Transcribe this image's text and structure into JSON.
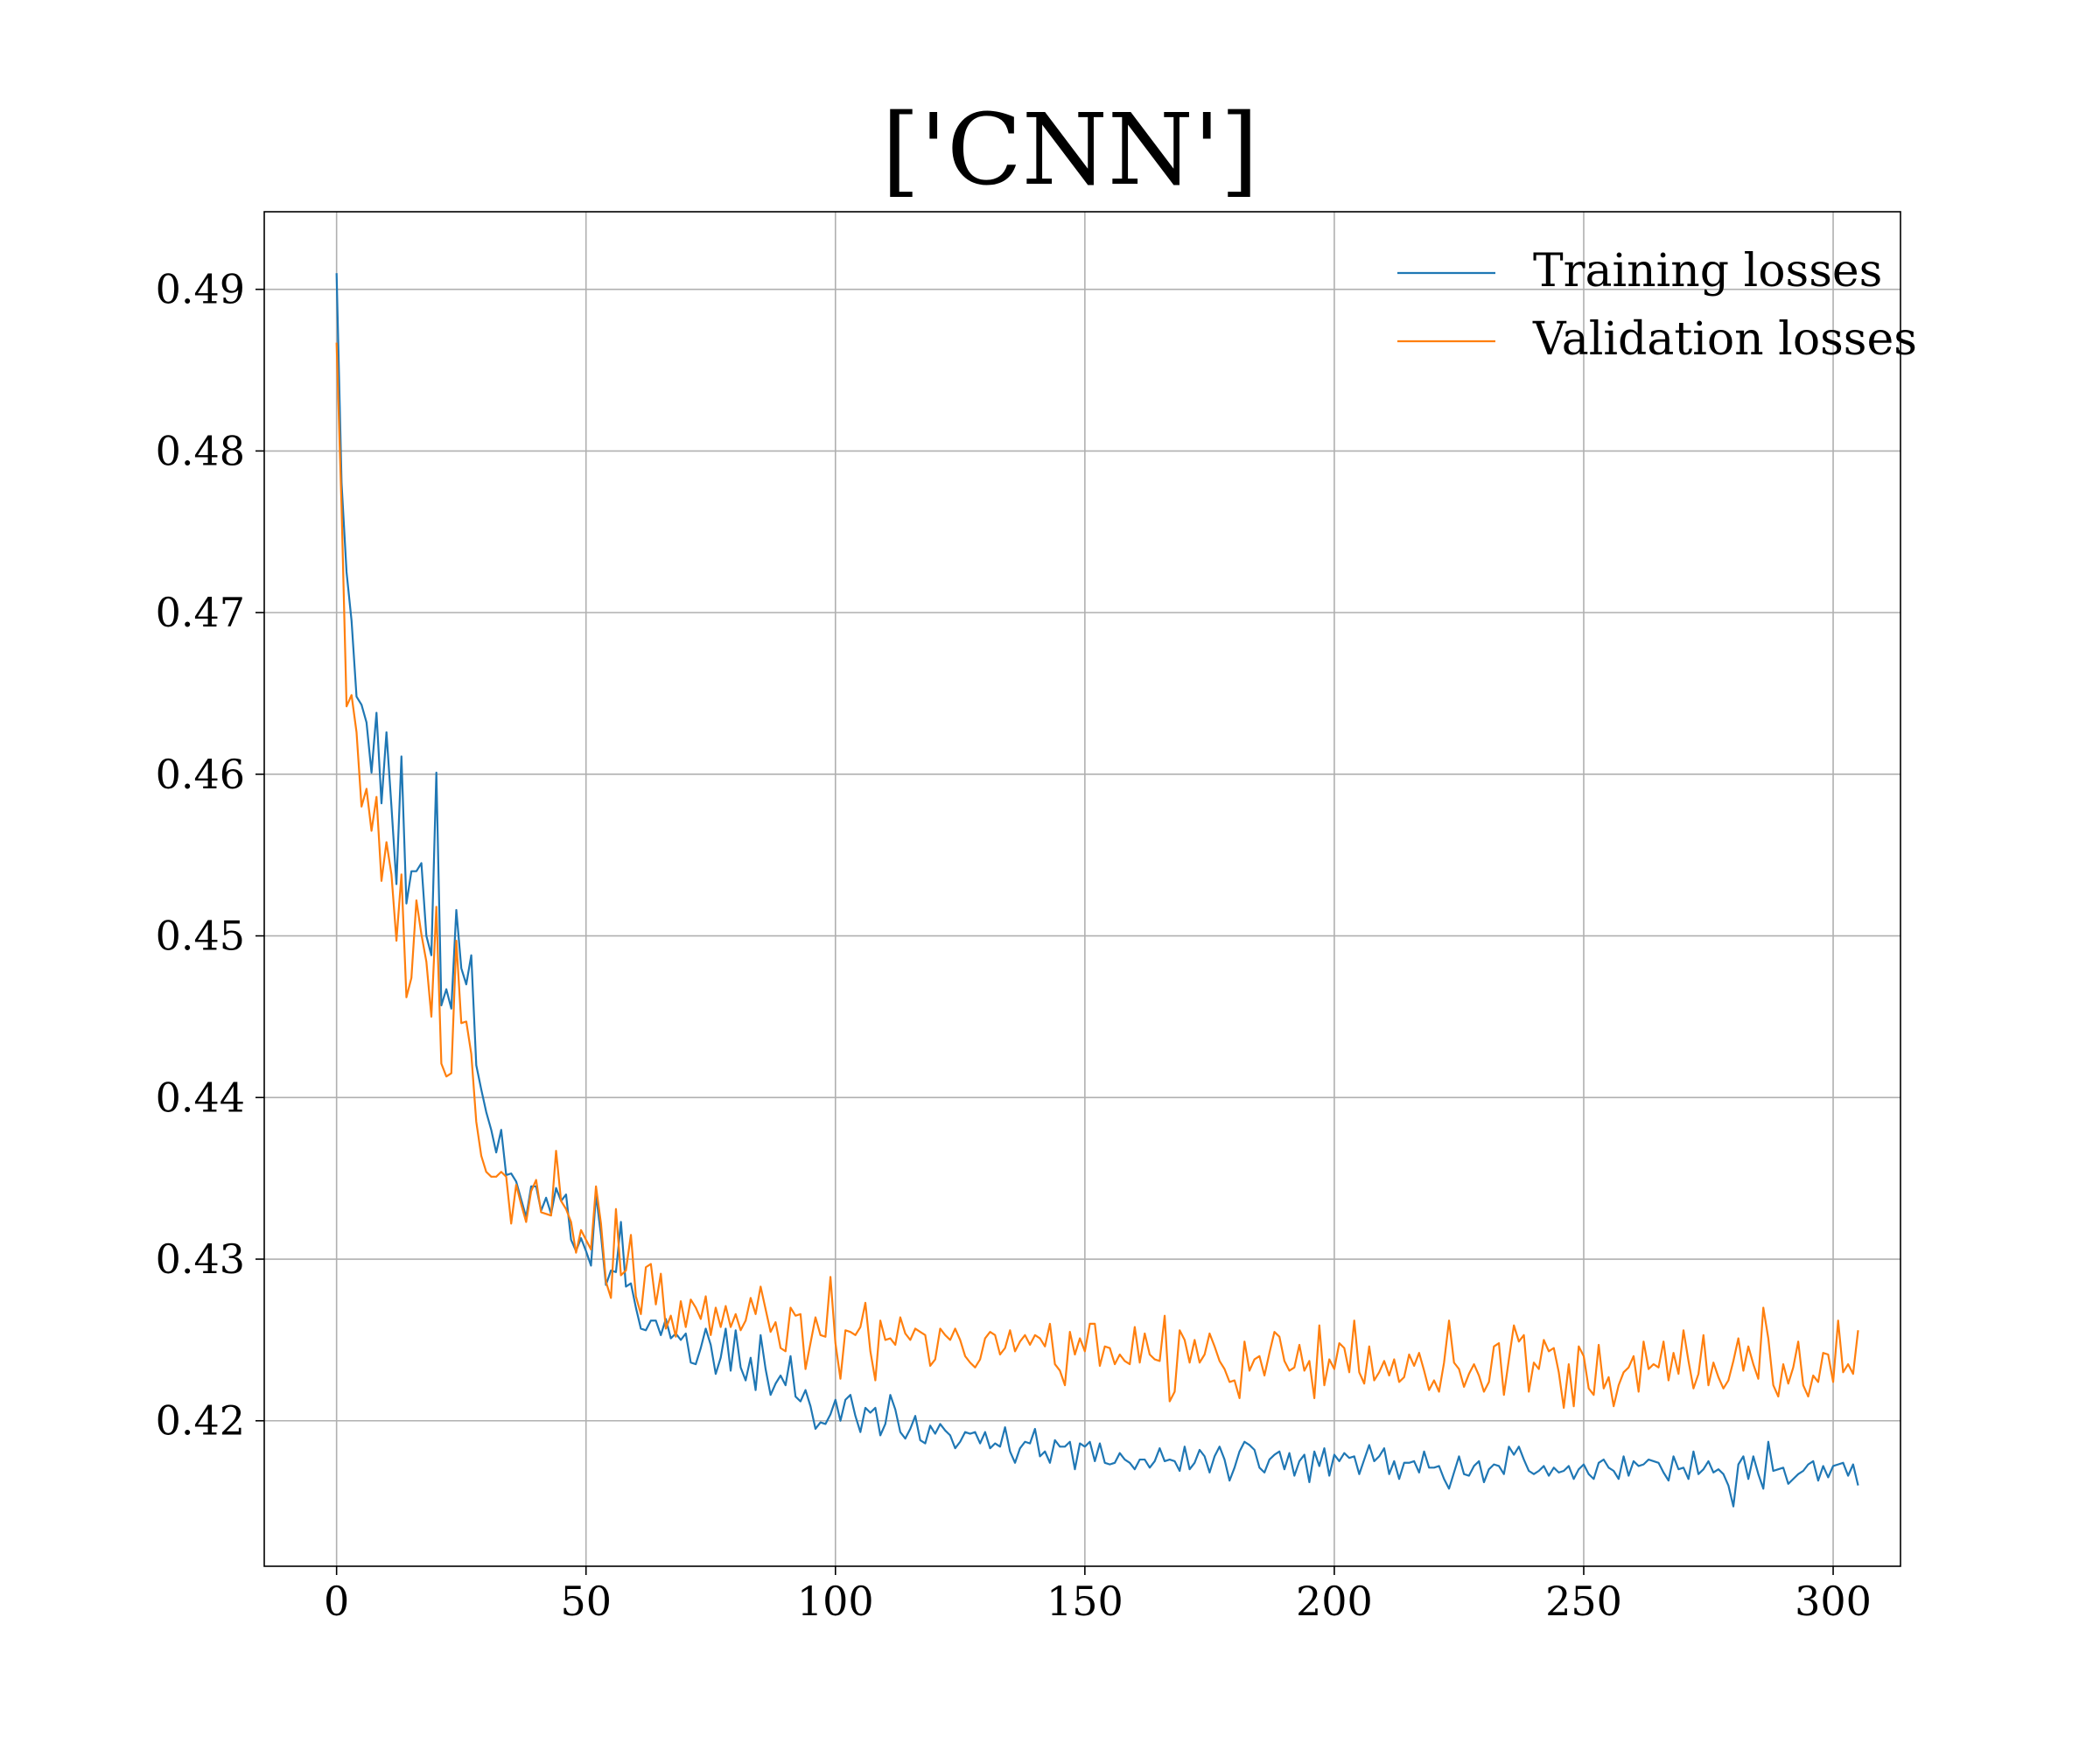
{
  "chart_data": {
    "type": "line",
    "title": "['CNN']",
    "xlabel": "",
    "ylabel": "",
    "xlim": [
      -14.5,
      313.5
    ],
    "ylim": [
      0.411,
      0.4948
    ],
    "xticks": [
      0,
      50,
      100,
      150,
      200,
      250,
      300
    ],
    "xtick_labels": [
      "0",
      "50",
      "100",
      "150",
      "200",
      "250",
      "300"
    ],
    "yticks": [
      0.42,
      0.43,
      0.44,
      0.45,
      0.46,
      0.47,
      0.48,
      0.49
    ],
    "ytick_labels": [
      "0.42",
      "0.43",
      "0.44",
      "0.45",
      "0.46",
      "0.47",
      "0.48",
      "0.49"
    ],
    "grid": true,
    "legend_position": "top-right",
    "colors": {
      "training": "#1f77b4",
      "validation": "#ff7f0e"
    },
    "series": [
      {
        "name": "Training losses",
        "color": "#1f77b4",
        "values": [
          0.491,
          0.478,
          0.4725,
          0.4695,
          0.4648,
          0.4643,
          0.4632,
          0.4601,
          0.4638,
          0.4582,
          0.4626,
          0.458,
          0.4532,
          0.4611,
          0.452,
          0.454,
          0.454,
          0.4545,
          0.45,
          0.4488,
          0.4601,
          0.4457,
          0.4467,
          0.4455,
          0.4516,
          0.448,
          0.447,
          0.4488,
          0.442,
          0.4405,
          0.4391,
          0.438,
          0.4366,
          0.438,
          0.4352,
          0.4353,
          0.4348,
          0.4337,
          0.4326,
          0.4345,
          0.4345,
          0.433,
          0.4338,
          0.4328,
          0.4344,
          0.4336,
          0.434,
          0.4312,
          0.4305,
          0.4313,
          0.4305,
          0.4296,
          0.434,
          0.4315,
          0.4284,
          0.4293,
          0.4292,
          0.4323,
          0.4283,
          0.4285,
          0.427,
          0.4257,
          0.4256,
          0.4262,
          0.4262,
          0.4253,
          0.4263,
          0.4251,
          0.4254,
          0.425,
          0.4254,
          0.4236,
          0.4235,
          0.4245,
          0.4257,
          0.4247,
          0.4229,
          0.4239,
          0.4257,
          0.4231,
          0.4256,
          0.4233,
          0.4225,
          0.4239,
          0.4219,
          0.4253,
          0.4232,
          0.4216,
          0.4223,
          0.4228,
          0.4222,
          0.424,
          0.4215,
          0.4212,
          0.4219,
          0.4209,
          0.4195,
          0.4199,
          0.4198,
          0.4204,
          0.4213,
          0.42,
          0.4213,
          0.4216,
          0.4203,
          0.4193,
          0.4208,
          0.4205,
          0.4208,
          0.4191,
          0.4198,
          0.4216,
          0.4207,
          0.4193,
          0.4189,
          0.4195,
          0.4203,
          0.4188,
          0.4186,
          0.4197,
          0.4192,
          0.4198,
          0.4194,
          0.4191,
          0.4183,
          0.4187,
          0.4193,
          0.4192,
          0.4193,
          0.4186,
          0.4193,
          0.4183,
          0.4186,
          0.4184,
          0.4196,
          0.4181,
          0.4174,
          0.4183,
          0.4187,
          0.4186,
          0.4195,
          0.4178,
          0.4181,
          0.4174,
          0.4188,
          0.4184,
          0.4184,
          0.4187,
          0.417,
          0.4186,
          0.4184,
          0.4187,
          0.4175,
          0.4186,
          0.4174,
          0.4173,
          0.4174,
          0.418,
          0.4176,
          0.4174,
          0.417,
          0.4176,
          0.4176,
          0.4171,
          0.4175,
          0.4183,
          0.4175,
          0.4176,
          0.4175,
          0.4169,
          0.4184,
          0.417,
          0.4174,
          0.4182,
          0.4178,
          0.4168,
          0.4178,
          0.4184,
          0.4176,
          0.4163,
          0.4171,
          0.4181,
          0.4187,
          0.4185,
          0.4182,
          0.4171,
          0.4168,
          0.4176,
          0.4179,
          0.4181,
          0.417,
          0.418,
          0.4166,
          0.4175,
          0.4179,
          0.4162,
          0.4181,
          0.4172,
          0.4183,
          0.4166,
          0.4179,
          0.4175,
          0.418,
          0.4177,
          0.4178,
          0.4167,
          0.4176,
          0.4185,
          0.4175,
          0.4178,
          0.4183,
          0.4167,
          0.4175,
          0.4164,
          0.4174,
          0.4174,
          0.4175,
          0.4168,
          0.4181,
          0.4171,
          0.4171,
          0.4172,
          0.4164,
          0.4158,
          0.4168,
          0.4178,
          0.4167,
          0.4166,
          0.4172,
          0.4175,
          0.4162,
          0.417,
          0.4173,
          0.4172,
          0.4167,
          0.4184,
          0.4179,
          0.4184,
          0.4176,
          0.4169,
          0.4167,
          0.4169,
          0.4172,
          0.4166,
          0.4171,
          0.4168,
          0.4169,
          0.4172,
          0.4164,
          0.417,
          0.4173,
          0.4167,
          0.4164,
          0.4174,
          0.4176,
          0.4171,
          0.4169,
          0.4164,
          0.4178,
          0.4166,
          0.4175,
          0.4172,
          0.4173,
          0.4176,
          0.4175,
          0.4174,
          0.4168,
          0.4163,
          0.4178,
          0.417,
          0.4171,
          0.4164,
          0.4181,
          0.4167,
          0.417,
          0.4175,
          0.4168,
          0.417,
          0.4167,
          0.416,
          0.4147,
          0.4173,
          0.4178,
          0.4164,
          0.4178,
          0.4167,
          0.4158,
          0.4187,
          0.4169,
          0.417,
          0.4171,
          0.4161,
          0.4164,
          0.4167,
          0.4169,
          0.4173,
          0.4175,
          0.4163,
          0.4172,
          0.4165,
          0.4172,
          0.4173,
          0.4174,
          0.4166,
          0.4173,
          0.416
        ]
      },
      {
        "name": "Validation losses",
        "color": "#ff7f0e",
        "values": [
          0.4867,
          0.4765,
          0.4642,
          0.4649,
          0.4626,
          0.458,
          0.4591,
          0.4565,
          0.4586,
          0.4534,
          0.4558,
          0.4538,
          0.4497,
          0.4538,
          0.4462,
          0.4474,
          0.4522,
          0.4501,
          0.4484,
          0.445,
          0.4518,
          0.4421,
          0.4413,
          0.4415,
          0.4497,
          0.4446,
          0.4447,
          0.4427,
          0.4385,
          0.4364,
          0.4354,
          0.4351,
          0.4351,
          0.4354,
          0.4351,
          0.4322,
          0.4346,
          0.4334,
          0.4323,
          0.4342,
          0.4349,
          0.4329,
          0.4328,
          0.4327,
          0.4367,
          0.4336,
          0.4331,
          0.4323,
          0.4304,
          0.4318,
          0.4312,
          0.4306,
          0.4345,
          0.4322,
          0.4286,
          0.4276,
          0.4331,
          0.429,
          0.4293,
          0.4315,
          0.4277,
          0.4266,
          0.4295,
          0.4297,
          0.4272,
          0.4291,
          0.4257,
          0.4265,
          0.4252,
          0.4274,
          0.4258,
          0.4275,
          0.427,
          0.4263,
          0.4277,
          0.4253,
          0.427,
          0.4258,
          0.4271,
          0.4258,
          0.4266,
          0.4256,
          0.4262,
          0.4276,
          0.4266,
          0.4283,
          0.4269,
          0.4255,
          0.4261,
          0.4245,
          0.4243,
          0.427,
          0.4265,
          0.4266,
          0.4232,
          0.4248,
          0.4264,
          0.4253,
          0.4252,
          0.4289,
          0.4248,
          0.4226,
          0.4256,
          0.4255,
          0.4253,
          0.4258,
          0.4273,
          0.4243,
          0.4225,
          0.4262,
          0.425,
          0.4251,
          0.4247,
          0.4264,
          0.4254,
          0.425,
          0.4257,
          0.4255,
          0.4253,
          0.4234,
          0.4238,
          0.4257,
          0.4253,
          0.425,
          0.4257,
          0.425,
          0.424,
          0.4236,
          0.4233,
          0.4238,
          0.4251,
          0.4255,
          0.4253,
          0.4241,
          0.4245,
          0.4256,
          0.4243,
          0.4249,
          0.4253,
          0.4247,
          0.4253,
          0.4251,
          0.4246,
          0.426,
          0.4235,
          0.4231,
          0.4222,
          0.4255,
          0.4241,
          0.4251,
          0.4243,
          0.426,
          0.426,
          0.4234,
          0.4246,
          0.4245,
          0.4235,
          0.4241,
          0.4237,
          0.4235,
          0.4258,
          0.4236,
          0.4254,
          0.4241,
          0.4238,
          0.4237,
          0.4265,
          0.4212,
          0.4218,
          0.4256,
          0.425,
          0.4236,
          0.425,
          0.4236,
          0.4241,
          0.4254,
          0.4246,
          0.4237,
          0.4232,
          0.4224,
          0.4225,
          0.4214,
          0.4249,
          0.4231,
          0.4238,
          0.424,
          0.4228,
          0.4242,
          0.4255,
          0.4252,
          0.4237,
          0.4231,
          0.4233,
          0.4247,
          0.4231,
          0.4237,
          0.4214,
          0.4259,
          0.4222,
          0.4238,
          0.4232,
          0.4248,
          0.4245,
          0.423,
          0.4262,
          0.423,
          0.4223,
          0.4246,
          0.4225,
          0.423,
          0.4237,
          0.4228,
          0.4238,
          0.4224,
          0.4227,
          0.4241,
          0.4234,
          0.4242,
          0.4231,
          0.4219,
          0.4225,
          0.4218,
          0.4236,
          0.4262,
          0.4236,
          0.4232,
          0.4221,
          0.4229,
          0.4235,
          0.4228,
          0.4218,
          0.4224,
          0.4246,
          0.4248,
          0.4216,
          0.4238,
          0.4259,
          0.4249,
          0.4253,
          0.4218,
          0.4236,
          0.4232,
          0.425,
          0.4243,
          0.4245,
          0.423,
          0.4208,
          0.4235,
          0.4209,
          0.4246,
          0.424,
          0.422,
          0.4216,
          0.4247,
          0.422,
          0.4227,
          0.4209,
          0.4222,
          0.423,
          0.4233,
          0.424,
          0.4218,
          0.4249,
          0.4232,
          0.4235,
          0.4233,
          0.4249,
          0.4225,
          0.4242,
          0.4229,
          0.4256,
          0.4237,
          0.422,
          0.4229,
          0.4253,
          0.4222,
          0.4236,
          0.4227,
          0.422,
          0.4225,
          0.4237,
          0.4251,
          0.4231,
          0.4246,
          0.4235,
          0.4226,
          0.427,
          0.4251,
          0.4222,
          0.4215,
          0.4235,
          0.4223,
          0.4233,
          0.4249,
          0.4222,
          0.4215,
          0.4228,
          0.4224,
          0.4242,
          0.4241,
          0.4224,
          0.4262,
          0.423,
          0.4235,
          0.4229,
          0.4256
        ]
      }
    ]
  }
}
